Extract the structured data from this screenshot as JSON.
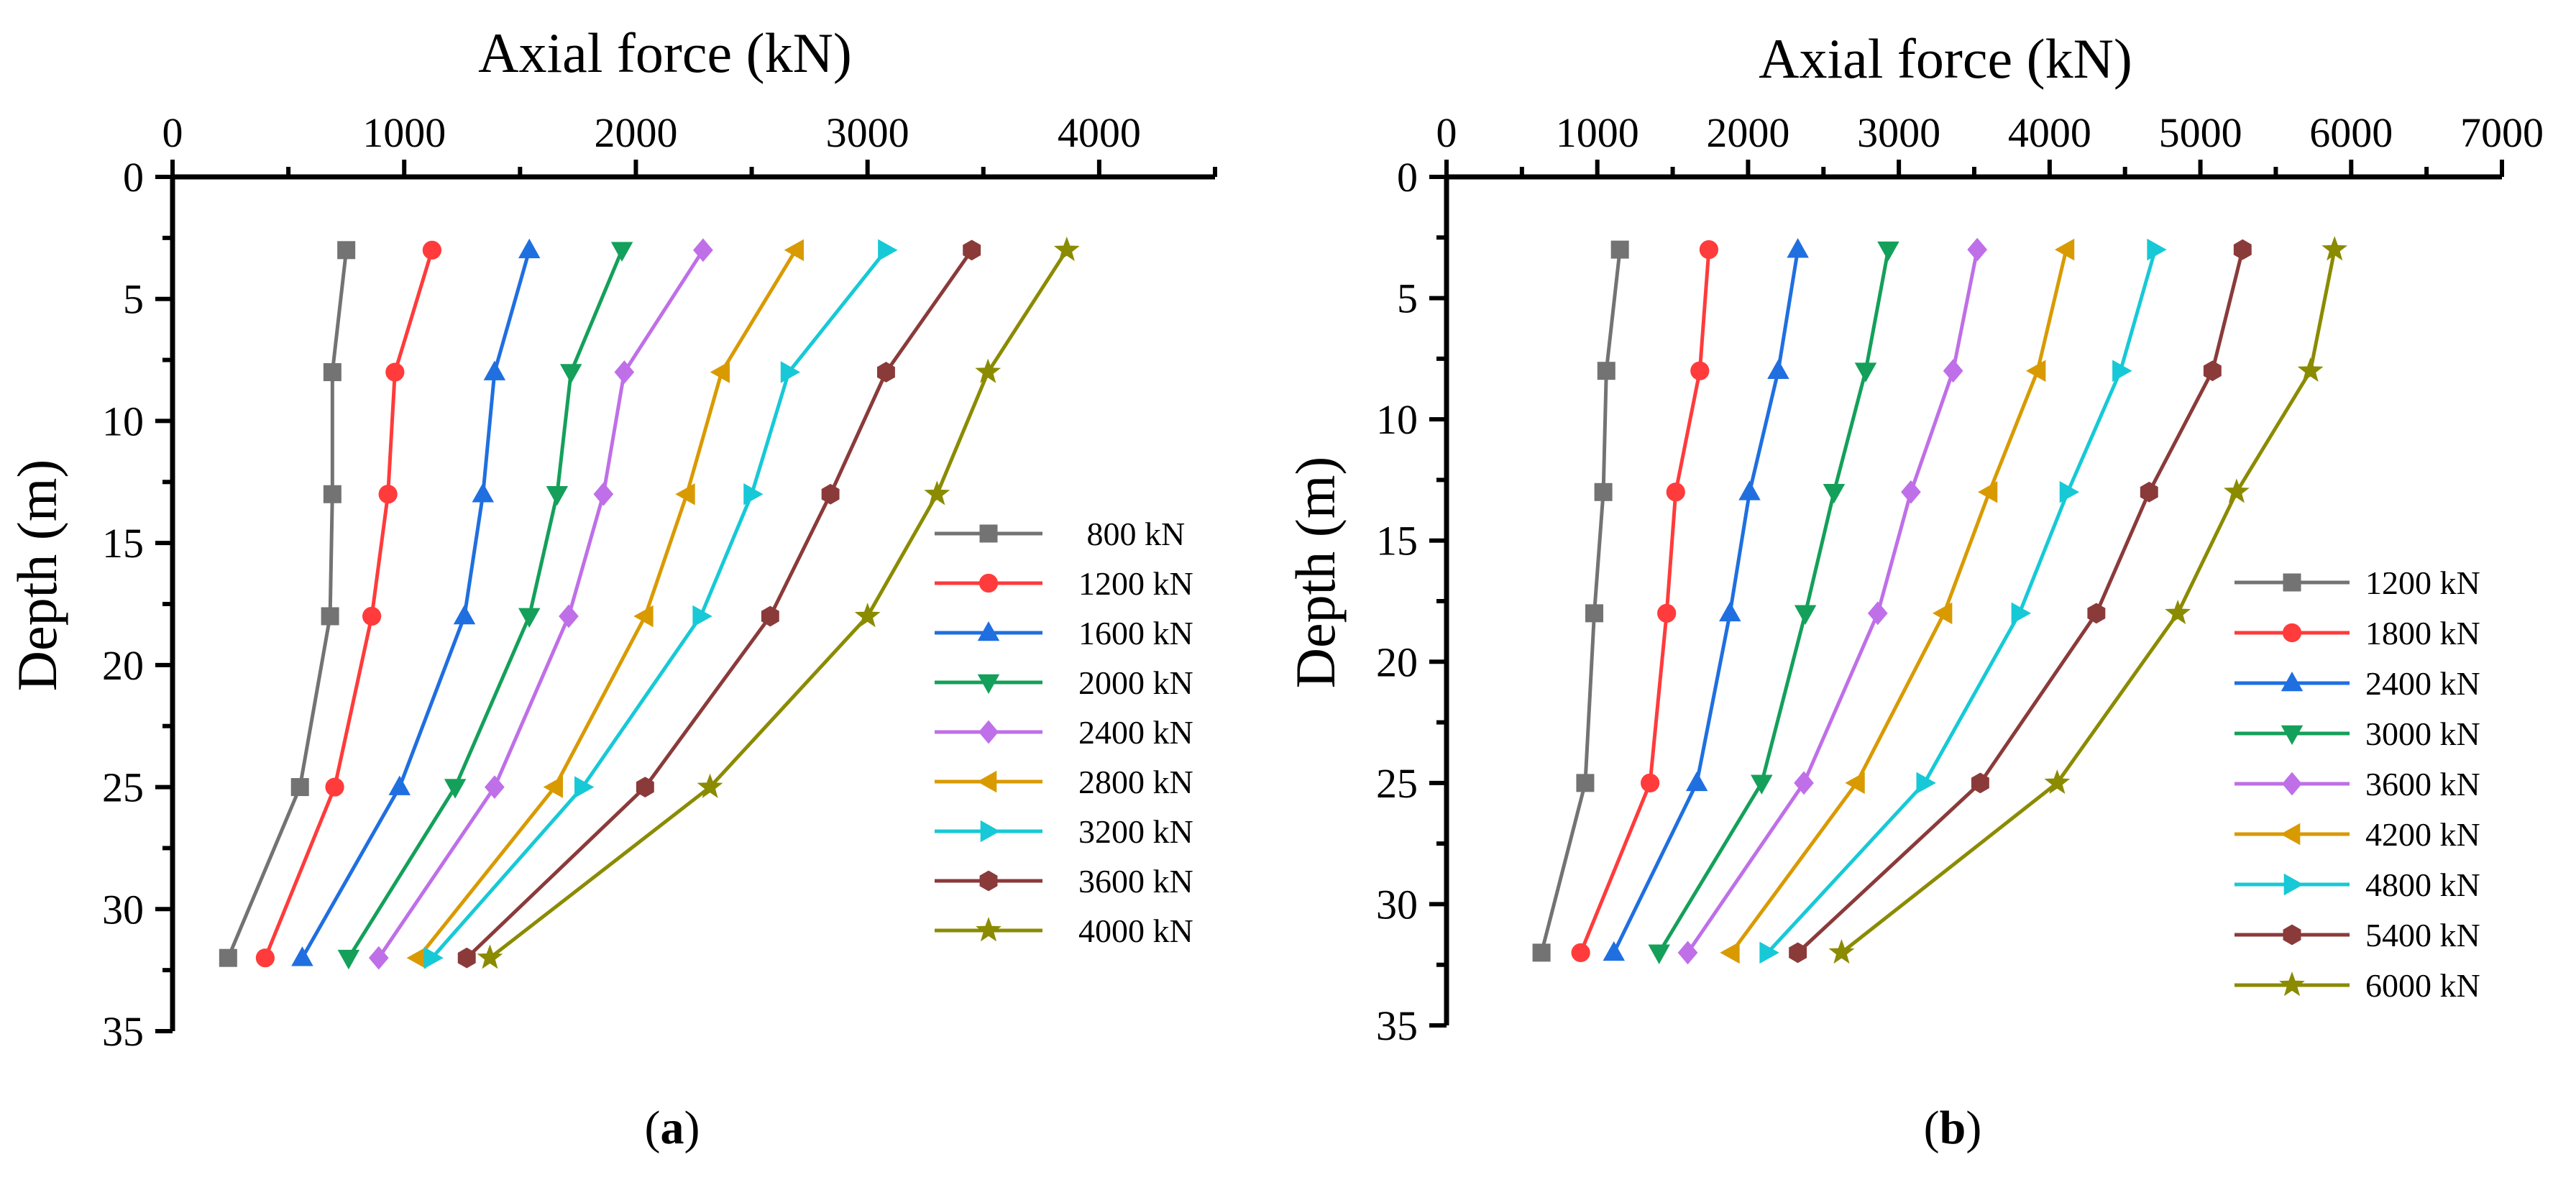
{
  "chart_data": [
    {
      "type": "line",
      "panel_label": "(a)",
      "xlabel": "Axial force (kN)",
      "ylabel": "Depth (m)",
      "x_axis_position": "top",
      "y_axis_inverted": true,
      "xlim": [
        0,
        4500
      ],
      "ylim": [
        0,
        35
      ],
      "xticks": [
        0,
        1000,
        2000,
        3000,
        4000
      ],
      "yticks": [
        0,
        5,
        10,
        15,
        20,
        25,
        30,
        35
      ],
      "depths": [
        3,
        8,
        13,
        18,
        25,
        32
      ],
      "legend_position": "right-middle",
      "grid": false,
      "series": [
        {
          "name": " 800 kN",
          "color": "#737373",
          "marker": "square",
          "x": [
            750,
            690,
            690,
            680,
            550,
            240
          ]
        },
        {
          "name": "1200 kN",
          "color": "#ff3b3b",
          "marker": "circle",
          "x": [
            1120,
            960,
            930,
            860,
            700,
            400
          ]
        },
        {
          "name": "1600 kN",
          "color": "#1f6fe0",
          "marker": "triangle-up",
          "x": [
            1540,
            1390,
            1340,
            1260,
            980,
            560
          ]
        },
        {
          "name": "2000 kN",
          "color": "#14a05a",
          "marker": "triangle-down",
          "x": [
            1940,
            1720,
            1660,
            1540,
            1220,
            760
          ]
        },
        {
          "name": "2400 kN",
          "color": "#bf6fe8",
          "marker": "diamond",
          "x": [
            2290,
            1950,
            1860,
            1710,
            1390,
            890
          ]
        },
        {
          "name": "2800 kN",
          "color": "#d99a00",
          "marker": "triangle-left",
          "x": [
            2690,
            2370,
            2220,
            2040,
            1650,
            1060
          ]
        },
        {
          "name": "3200 kN",
          "color": "#17c9d6",
          "marker": "triangle-right",
          "x": [
            3080,
            2660,
            2500,
            2280,
            1770,
            1120
          ]
        },
        {
          "name": "3600 kN",
          "color": "#8b3a3a",
          "marker": "hexagon",
          "x": [
            3450,
            3080,
            2840,
            2580,
            2040,
            1270
          ]
        },
        {
          "name": "4000 kN",
          "color": "#8b8b00",
          "marker": "star",
          "x": [
            3860,
            3520,
            3300,
            3000,
            2320,
            1370
          ]
        }
      ]
    },
    {
      "type": "line",
      "panel_label": "(b)",
      "xlabel": "Axial force (kN)",
      "ylabel": "Depth (m)",
      "x_axis_position": "top",
      "y_axis_inverted": true,
      "xlim": [
        0,
        7000
      ],
      "ylim": [
        0,
        35
      ],
      "xticks": [
        0,
        1000,
        2000,
        3000,
        4000,
        5000,
        6000,
        7000
      ],
      "yticks": [
        0,
        5,
        10,
        15,
        20,
        25,
        30,
        35
      ],
      "depths": [
        3,
        8,
        13,
        18,
        25,
        32
      ],
      "legend_position": "right-middle",
      "grid": false,
      "series": [
        {
          "name": "1200 kN",
          "color": "#737373",
          "marker": "square",
          "x": [
            1150,
            1060,
            1040,
            980,
            920,
            630
          ]
        },
        {
          "name": "1800 kN",
          "color": "#ff3b3b",
          "marker": "circle",
          "x": [
            1740,
            1680,
            1520,
            1460,
            1350,
            890
          ]
        },
        {
          "name": "2400 kN",
          "color": "#1f6fe0",
          "marker": "triangle-up",
          "x": [
            2330,
            2200,
            2010,
            1880,
            1660,
            1110
          ]
        },
        {
          "name": "3000 kN",
          "color": "#14a05a",
          "marker": "triangle-down",
          "x": [
            2930,
            2780,
            2570,
            2380,
            2090,
            1410
          ]
        },
        {
          "name": "3600 kN",
          "color": "#bf6fe8",
          "marker": "diamond",
          "x": [
            3520,
            3360,
            3080,
            2860,
            2370,
            1600
          ]
        },
        {
          "name": "4200 kN",
          "color": "#d99a00",
          "marker": "triangle-left",
          "x": [
            4110,
            3920,
            3600,
            3300,
            2720,
            1890
          ]
        },
        {
          "name": "4800 kN",
          "color": "#17c9d6",
          "marker": "triangle-right",
          "x": [
            4700,
            4470,
            4120,
            3800,
            3170,
            2130
          ]
        },
        {
          "name": "5400 kN",
          "color": "#8b3a3a",
          "marker": "hexagon",
          "x": [
            5280,
            5080,
            4660,
            4310,
            3540,
            2330
          ]
        },
        {
          "name": "6000 kN",
          "color": "#8b8b00",
          "marker": "star",
          "x": [
            5890,
            5730,
            5240,
            4850,
            4050,
            2620
          ]
        }
      ]
    }
  ]
}
